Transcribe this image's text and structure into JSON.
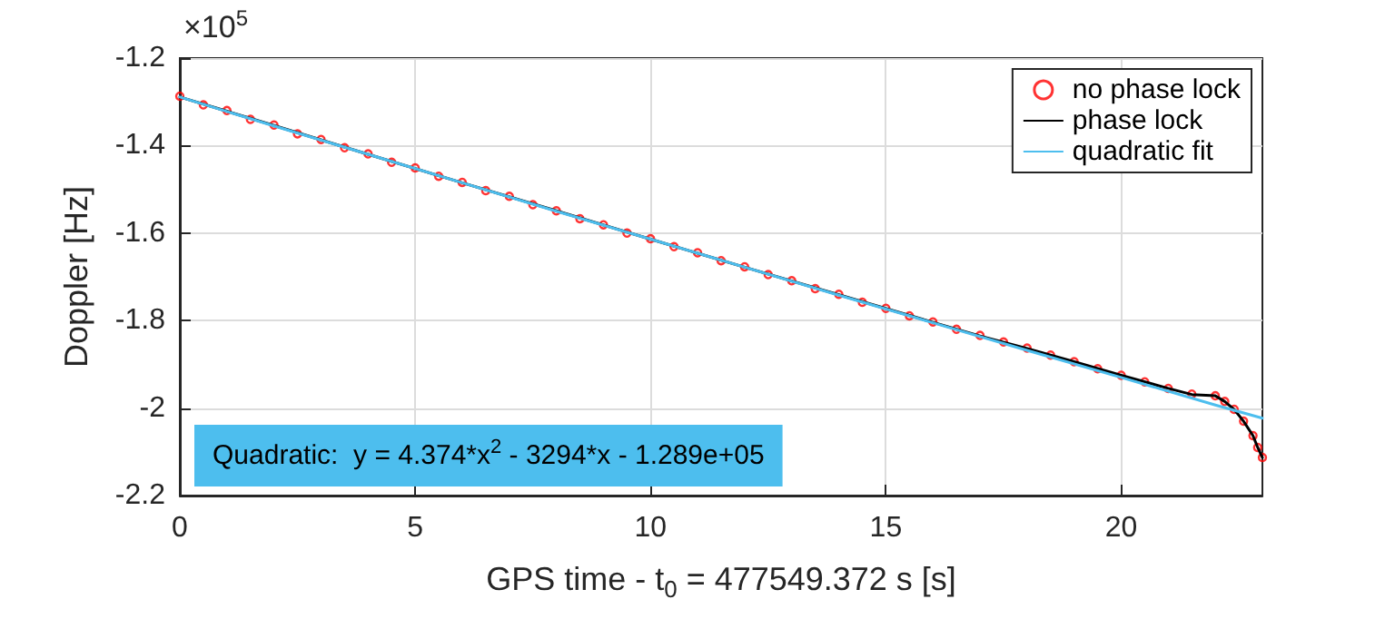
{
  "chart_data": {
    "type": "line",
    "xlabel": "GPS time - t$_{0}$ = 477549.372 s [s]",
    "ylabel": "Doppler [Hz]",
    "annotations": [
      "×10$^{5}$",
      "Quadratic:  y = 4.374*x$^{2}$ - 3294*x - 1.289e+05"
    ],
    "xlim": [
      0,
      23
    ],
    "xticks": [
      0,
      5,
      10,
      15,
      20
    ],
    "ylim": [
      -2.2,
      -1.2
    ],
    "yticks": [
      -1.2,
      -1.4,
      -1.6,
      -1.8,
      -2,
      -2.2
    ],
    "grid": true,
    "legend": "top right",
    "line_style": "solid",
    "series": [
      {
        "name": "no phase lock",
        "type": "scatter",
        "marker": "circle",
        "color": "#ff0000",
        "x": [
          0,
          0.5,
          1,
          1.5,
          2,
          2.5,
          3,
          3.5,
          4,
          4.5,
          5,
          5.5,
          6,
          6.5,
          7,
          7.5,
          8,
          8.5,
          9,
          9.5,
          10,
          10.5,
          11,
          11.5,
          12,
          12.5,
          13,
          13.5,
          14,
          14.5,
          15,
          15.5,
          16,
          16.5,
          17,
          17.5,
          18,
          18.5,
          19,
          19.5,
          20,
          20.5,
          21,
          21.5,
          22,
          22.2,
          22.4,
          22.6,
          22.8,
          22.9,
          23
        ],
        "values": [
          -1.287,
          -1.307,
          -1.32,
          -1.34,
          -1.353,
          -1.373,
          -1.386,
          -1.405,
          -1.419,
          -1.438,
          -1.451,
          -1.47,
          -1.484,
          -1.503,
          -1.516,
          -1.535,
          -1.549,
          -1.567,
          -1.581,
          -1.6,
          -1.613,
          -1.631,
          -1.645,
          -1.663,
          -1.677,
          -1.695,
          -1.709,
          -1.727,
          -1.74,
          -1.758,
          -1.772,
          -1.789,
          -1.803,
          -1.82,
          -1.834,
          -1.849,
          -1.863,
          -1.879,
          -1.894,
          -1.91,
          -1.925,
          -1.94,
          -1.955,
          -1.968,
          -1.972,
          -1.985,
          -2.003,
          -2.03,
          -2.063,
          -2.09,
          -2.113
        ]
      },
      {
        "name": "phase lock",
        "marker": "none",
        "color": "#000000",
        "x": [
          0,
          2,
          4,
          6,
          8,
          10,
          12,
          14,
          16,
          17,
          18,
          19,
          20,
          21,
          21.5,
          22,
          22.2,
          22.4,
          22.6,
          22.8,
          22.9,
          23
        ],
        "values": [
          -1.289,
          -1.354,
          -1.42,
          -1.485,
          -1.549,
          -1.614,
          -1.678,
          -1.741,
          -1.804,
          -1.835,
          -1.864,
          -1.894,
          -1.925,
          -1.955,
          -1.969,
          -1.972,
          -1.985,
          -2.003,
          -2.03,
          -2.063,
          -2.09,
          -2.113
        ]
      },
      {
        "name": "quadratic fit",
        "marker": "none",
        "color": "#4dbeee",
        "x": [
          0,
          2,
          4,
          6,
          8,
          10,
          12,
          14,
          16,
          18,
          20,
          22,
          23
        ],
        "values": [
          -1.289,
          -1.355,
          -1.42,
          -1.485,
          -1.55,
          -1.614,
          -1.678,
          -1.742,
          -1.805,
          -1.868,
          -1.93,
          -1.993,
          -2.023
        ]
      }
    ]
  }
}
